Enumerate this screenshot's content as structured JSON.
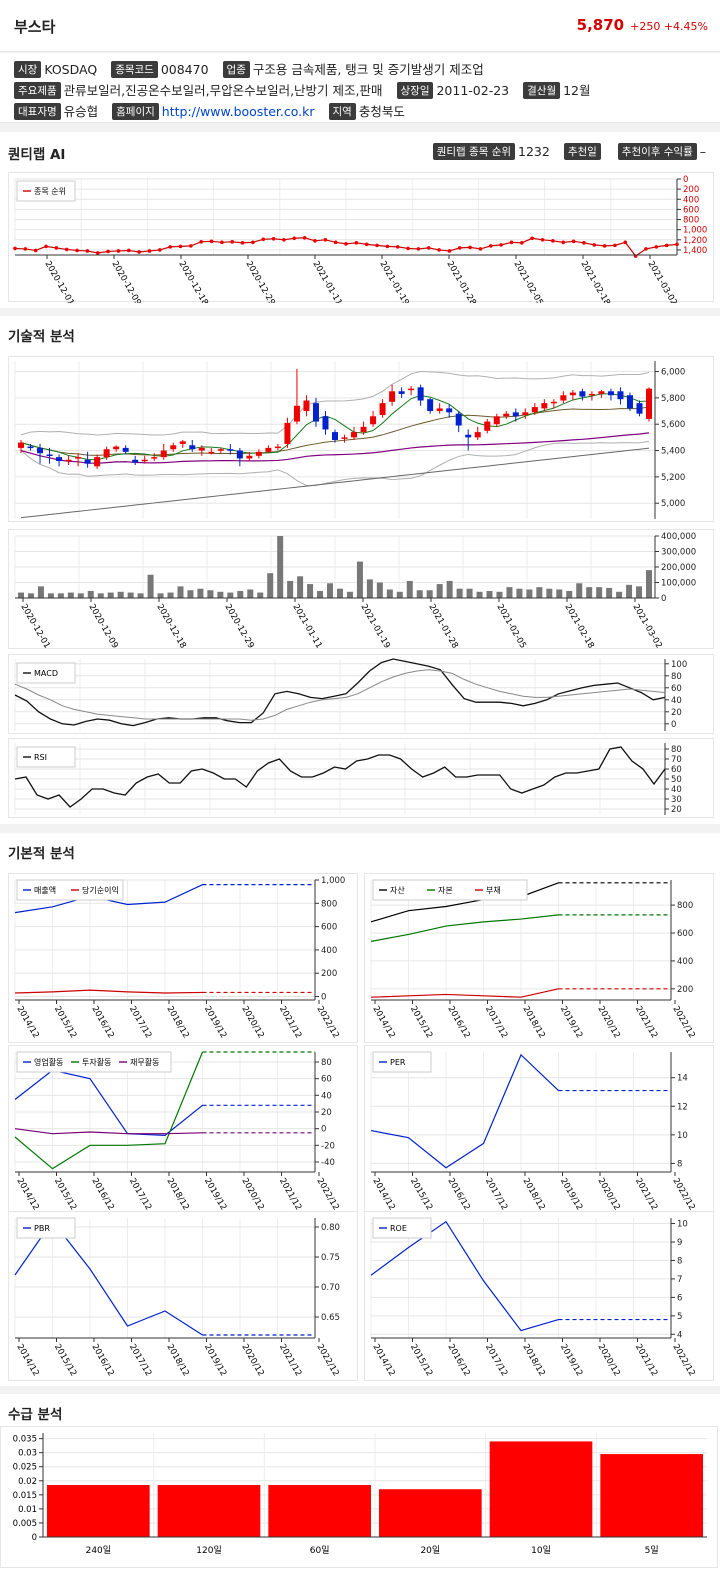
{
  "header": {
    "name": "부스타",
    "price": "5,870",
    "change": "+250 +4.45%"
  },
  "info": {
    "market_label": "시장",
    "market": "KOSDAQ",
    "code_label": "종목코드",
    "code": "008470",
    "sector_label": "업종",
    "sector": "구조용 금속제품, 탱크 및 증기발생기 제조업",
    "products_label": "주요제품",
    "products": "관류보일러,진공온수보일러,무압온수보일러,난방기 제조,판매",
    "listing_label": "상장일",
    "listing": "2011-02-23",
    "fiscal_label": "결산월",
    "fiscal": "12월",
    "ceo_label": "대표자명",
    "ceo": "유승협",
    "homepage_label": "홈페이지",
    "homepage": "http://www.booster.co.kr",
    "region_label": "지역",
    "region": "충청북도"
  },
  "quant": {
    "title": "퀀티랩 AI",
    "rank_label": "퀀티랩 종목 순위",
    "rank": "1232",
    "rec_date_label": "추천일",
    "return_label": "추천이후 수익률",
    "return": "–"
  },
  "tech_title": "기술적 분석",
  "fund_title": "기본적 분석",
  "supply_title": "수급 분석",
  "dates": [
    "2020-12-01",
    "2020-12-09",
    "2020-12-18",
    "2020-12-29",
    "2021-01-11",
    "2021-01-19",
    "2021-01-28",
    "2021-02-05",
    "2021-02-18",
    "2021-03-02"
  ],
  "years": [
    "2014/12",
    "2015/12",
    "2016/12",
    "2017/12",
    "2018/12",
    "2019/12",
    "2020/12",
    "2021/12",
    "2022/12"
  ],
  "chart_data": [
    {
      "id": "rank",
      "type": "line",
      "legend": [
        "종목 순위"
      ],
      "yticks": [
        "0",
        "200",
        "400",
        "600",
        "800",
        "1,000",
        "1,200",
        "1,400"
      ],
      "ylim": [
        0,
        1500
      ],
      "inverted": true,
      "values": [
        1370,
        1380,
        1410,
        1330,
        1360,
        1390,
        1410,
        1420,
        1460,
        1430,
        1420,
        1410,
        1440,
        1420,
        1400,
        1340,
        1330,
        1320,
        1240,
        1230,
        1250,
        1240,
        1260,
        1250,
        1190,
        1180,
        1200,
        1170,
        1160,
        1220,
        1200,
        1250,
        1280,
        1260,
        1290,
        1310,
        1330,
        1340,
        1370,
        1380,
        1360,
        1400,
        1420,
        1360,
        1350,
        1380,
        1320,
        1300,
        1250,
        1260,
        1170,
        1200,
        1220,
        1250,
        1230,
        1260,
        1300,
        1320,
        1310,
        1250,
        1520,
        1380,
        1340,
        1310,
        1290
      ]
    },
    {
      "id": "price",
      "type": "candlestick",
      "yticks": [
        "5,000",
        "5,200",
        "5,400",
        "5,600",
        "5,800",
        "6,000"
      ],
      "ylim": [
        4880,
        6080
      ],
      "candles": [
        [
          5420,
          5460,
          5380,
          5480
        ],
        [
          5430,
          5420,
          5400,
          5450
        ],
        [
          5420,
          5380,
          5300,
          5450
        ],
        [
          5370,
          5360,
          5300,
          5420
        ],
        [
          5350,
          5320,
          5280,
          5370
        ],
        [
          5320,
          5330,
          5290,
          5360
        ],
        [
          5340,
          5350,
          5280,
          5380
        ],
        [
          5330,
          5300,
          5270,
          5390
        ],
        [
          5280,
          5350,
          5260,
          5370
        ],
        [
          5350,
          5410,
          5330,
          5430
        ],
        [
          5410,
          5430,
          5390,
          5440
        ],
        [
          5420,
          5390,
          5370,
          5440
        ],
        [
          5330,
          5310,
          5290,
          5360
        ],
        [
          5320,
          5330,
          5300,
          5360
        ],
        [
          5340,
          5350,
          5320,
          5380
        ],
        [
          5350,
          5400,
          5330,
          5450
        ],
        [
          5410,
          5440,
          5390,
          5460
        ],
        [
          5450,
          5470,
          5420,
          5480
        ],
        [
          5440,
          5410,
          5390,
          5480
        ],
        [
          5400,
          5420,
          5360,
          5440
        ],
        [
          5390,
          5390,
          5370,
          5420
        ],
        [
          5400,
          5410,
          5380,
          5420
        ],
        [
          5410,
          5400,
          5370,
          5450
        ],
        [
          5400,
          5340,
          5280,
          5420
        ],
        [
          5340,
          5360,
          5320,
          5390
        ],
        [
          5360,
          5390,
          5340,
          5410
        ],
        [
          5390,
          5420,
          5380,
          5440
        ],
        [
          5420,
          5430,
          5400,
          5450
        ],
        [
          5450,
          5610,
          5420,
          5650
        ],
        [
          5620,
          5740,
          5600,
          6020
        ],
        [
          5700,
          5780,
          5660,
          5820
        ],
        [
          5760,
          5620,
          5580,
          5800
        ],
        [
          5660,
          5560,
          5520,
          5700
        ],
        [
          5540,
          5480,
          5460,
          5560
        ],
        [
          5490,
          5500,
          5460,
          5520
        ],
        [
          5500,
          5540,
          5480,
          5580
        ],
        [
          5540,
          5580,
          5520,
          5620
        ],
        [
          5600,
          5660,
          5580,
          5700
        ],
        [
          5670,
          5760,
          5650,
          5790
        ],
        [
          5770,
          5850,
          5740,
          5900
        ],
        [
          5850,
          5830,
          5800,
          5880
        ],
        [
          5860,
          5870,
          5820,
          5890
        ],
        [
          5880,
          5780,
          5740,
          5900
        ],
        [
          5790,
          5700,
          5680,
          5800
        ],
        [
          5700,
          5720,
          5680,
          5760
        ],
        [
          5720,
          5690,
          5650,
          5750
        ],
        [
          5680,
          5590,
          5540,
          5700
        ],
        [
          5520,
          5500,
          5400,
          5560
        ],
        [
          5500,
          5540,
          5480,
          5580
        ],
        [
          5550,
          5620,
          5530,
          5640
        ],
        [
          5600,
          5660,
          5580,
          5680
        ],
        [
          5660,
          5680,
          5640,
          5700
        ],
        [
          5690,
          5660,
          5620,
          5720
        ],
        [
          5670,
          5690,
          5640,
          5720
        ],
        [
          5690,
          5730,
          5670,
          5760
        ],
        [
          5720,
          5760,
          5700,
          5790
        ],
        [
          5760,
          5770,
          5720,
          5790
        ],
        [
          5780,
          5820,
          5760,
          5850
        ],
        [
          5820,
          5840,
          5780,
          5860
        ],
        [
          5850,
          5810,
          5780,
          5870
        ],
        [
          5820,
          5830,
          5780,
          5850
        ],
        [
          5830,
          5850,
          5800,
          5860
        ],
        [
          5850,
          5820,
          5780,
          5870
        ],
        [
          5850,
          5790,
          5750,
          5880
        ],
        [
          5820,
          5720,
          5700,
          5840
        ],
        [
          5760,
          5680,
          5660,
          5780
        ],
        [
          5640,
          5870,
          5620,
          5880
        ]
      ]
    },
    {
      "id": "volume",
      "type": "bar",
      "yticks": [
        "0",
        "100,000",
        "200,000",
        "300,000",
        "400,000"
      ],
      "ylim": [
        0,
        400000
      ],
      "values": [
        35000,
        30000,
        75000,
        30000,
        30000,
        35000,
        30000,
        45000,
        30000,
        35000,
        40000,
        35000,
        30000,
        150000,
        30000,
        35000,
        75000,
        50000,
        60000,
        50000,
        40000,
        35000,
        45000,
        55000,
        35000,
        160000,
        400000,
        110000,
        140000,
        90000,
        45000,
        95000,
        60000,
        40000,
        235000,
        120000,
        100000,
        55000,
        40000,
        110000,
        50000,
        50000,
        90000,
        110000,
        60000,
        60000,
        40000,
        45000,
        40000,
        70000,
        60000,
        55000,
        70000,
        60000,
        55000,
        45000,
        95000,
        70000,
        70000,
        65000,
        40000,
        85000,
        75000,
        180000
      ]
    },
    {
      "id": "macd",
      "type": "line",
      "legend": [
        "MACD"
      ],
      "yticks": [
        "0",
        "20",
        "40",
        "60",
        "80",
        "100"
      ],
      "ylim": [
        -12,
        108
      ],
      "series": [
        {
          "name": "MACD",
          "values": [
            48,
            38,
            20,
            8,
            0,
            -2,
            4,
            8,
            6,
            0,
            -3,
            2,
            8,
            10,
            8,
            8,
            10,
            10,
            5,
            2,
            2,
            18,
            50,
            54,
            50,
            44,
            42,
            46,
            50,
            68,
            88,
            102,
            108,
            104,
            100,
            96,
            90,
            65,
            42,
            36,
            36,
            36,
            34,
            30,
            34,
            40,
            50,
            55,
            60,
            64,
            66,
            68,
            60,
            52,
            40,
            44
          ]
        },
        {
          "name": "Signal",
          "values": [
            66,
            58,
            48,
            40,
            30,
            24,
            20,
            16,
            14,
            12,
            10,
            8,
            8,
            8,
            8,
            8,
            8,
            8,
            8,
            8,
            6,
            8,
            14,
            24,
            30,
            36,
            40,
            42,
            44,
            50,
            60,
            70,
            78,
            84,
            88,
            90,
            88,
            84,
            74,
            66,
            60,
            54,
            50,
            46,
            44,
            44,
            46,
            48,
            50,
            52,
            54,
            56,
            58,
            56,
            54,
            52
          ]
        }
      ]
    },
    {
      "id": "rsi",
      "type": "line",
      "legend": [
        "RSI"
      ],
      "yticks": [
        "20",
        "30",
        "40",
        "50",
        "60",
        "70",
        "80"
      ],
      "ylim": [
        14,
        86
      ],
      "values": [
        50,
        52,
        34,
        30,
        34,
        22,
        30,
        40,
        40,
        36,
        34,
        46,
        52,
        55,
        46,
        46,
        58,
        60,
        56,
        50,
        50,
        42,
        58,
        66,
        70,
        58,
        52,
        52,
        56,
        62,
        60,
        68,
        70,
        74,
        74,
        70,
        60,
        52,
        56,
        62,
        52,
        52,
        54,
        54,
        54,
        40,
        36,
        40,
        44,
        52,
        56,
        56,
        58,
        60,
        80,
        82,
        68,
        60,
        45,
        60
      ]
    },
    {
      "id": "sales",
      "type": "line",
      "legend": [
        "매출액",
        "당기순이익"
      ],
      "yticks": [
        "0",
        "200",
        "400",
        "600",
        "800",
        "1,000"
      ],
      "ylim": [
        -30,
        1000
      ],
      "series": [
        {
          "name": "매출액",
          "color": "#0022cc",
          "values": [
            720,
            770,
            860,
            790,
            810,
            960,
            960,
            960,
            960
          ]
        },
        {
          "name": "당기순이익",
          "color": "#cc0000",
          "values": [
            30,
            40,
            55,
            40,
            30,
            35,
            35,
            35,
            35
          ]
        }
      ]
    },
    {
      "id": "balance",
      "type": "line",
      "legend": [
        "자산",
        "자본",
        "부채"
      ],
      "yticks": [
        "200",
        "400",
        "600",
        "800"
      ],
      "ylim": [
        120,
        980
      ],
      "series": [
        {
          "name": "자산",
          "color": "#000000",
          "values": [
            680,
            760,
            790,
            840,
            860,
            960,
            960,
            960,
            960
          ]
        },
        {
          "name": "자본",
          "color": "#007700",
          "values": [
            540,
            590,
            650,
            680,
            700,
            730,
            730,
            730,
            730
          ]
        },
        {
          "name": "부채",
          "color": "#cc0000",
          "values": [
            140,
            150,
            160,
            150,
            140,
            200,
            200,
            200,
            200
          ]
        }
      ]
    },
    {
      "id": "cashflow",
      "type": "line",
      "legend": [
        "영업활동",
        "투자활동",
        "재무활동"
      ],
      "yticks": [
        "-40",
        "-20",
        "0",
        "20",
        "40",
        "60",
        "80"
      ],
      "ylim": [
        -52,
        92
      ],
      "series": [
        {
          "name": "영업활동",
          "color": "#0022cc",
          "values": [
            35,
            70,
            60,
            -6,
            -8,
            28,
            28,
            28,
            28
          ]
        },
        {
          "name": "투자활동",
          "color": "#007700",
          "values": [
            -10,
            -48,
            -20,
            -20,
            -18,
            92,
            92,
            92,
            92
          ]
        },
        {
          "name": "재무활동",
          "color": "#770077",
          "values": [
            0,
            -6,
            -4,
            -6,
            -6,
            -5,
            -5,
            -5,
            -5
          ]
        }
      ]
    },
    {
      "id": "per",
      "type": "line",
      "legend": [
        "PER"
      ],
      "yticks": [
        "8",
        "10",
        "12",
        "14"
      ],
      "ylim": [
        7.4,
        15.8
      ],
      "series": [
        {
          "name": "PER",
          "color": "#0022cc",
          "values": [
            10.3,
            9.8,
            7.7,
            9.4,
            15.6,
            13.1,
            13.1,
            13.1,
            13.1
          ]
        }
      ]
    },
    {
      "id": "pbr",
      "type": "line",
      "legend": [
        "PBR"
      ],
      "yticks": [
        "0.65",
        "0.70",
        "0.75",
        "0.80"
      ],
      "ylim": [
        0.615,
        0.815
      ],
      "series": [
        {
          "name": "PBR",
          "color": "#0022cc",
          "values": [
            0.72,
            0.81,
            0.73,
            0.635,
            0.66,
            0.62,
            0.62,
            0.62,
            0.62
          ]
        }
      ]
    },
    {
      "id": "roe",
      "type": "line",
      "legend": [
        "ROE"
      ],
      "yticks": [
        "4",
        "5",
        "6",
        "7",
        "8",
        "9",
        "10"
      ],
      "ylim": [
        3.8,
        10.3
      ],
      "series": [
        {
          "name": "ROE",
          "color": "#0022cc",
          "values": [
            7.2,
            8.7,
            10.1,
            6.9,
            4.2,
            4.8,
            4.8,
            4.8,
            4.8
          ]
        }
      ]
    },
    {
      "id": "supply",
      "type": "bar",
      "categories": [
        "240일",
        "120일",
        "60일",
        "20일",
        "10일",
        "5일"
      ],
      "yticks": [
        "0",
        "0.005",
        "0.01",
        "0.015",
        "0.02",
        "0.025",
        "0.03",
        "0.035"
      ],
      "ylim": [
        0,
        0.037
      ],
      "values": [
        0.0185,
        0.0185,
        0.0185,
        0.017,
        0.034,
        0.0295
      ]
    }
  ]
}
